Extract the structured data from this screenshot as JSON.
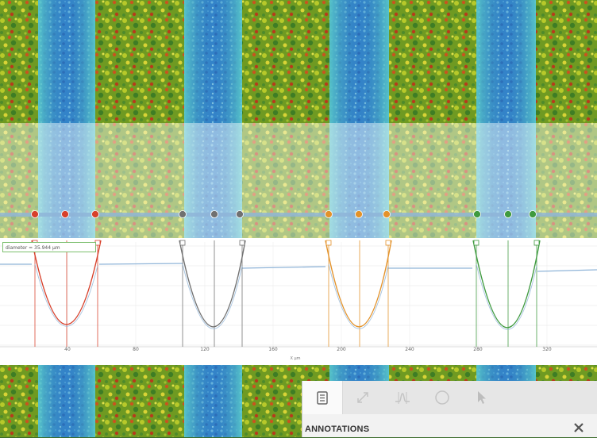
{
  "profile": {
    "diameter_label": "diameter = 35.944 µm",
    "x_unit": "X µm",
    "x_ticks": [
      "40",
      "80",
      "120",
      "160",
      "200",
      "240",
      "280",
      "320"
    ]
  },
  "panel": {
    "title": "ANNOTATIONS",
    "tools": [
      {
        "icon": "document-icon",
        "active": true
      },
      {
        "icon": "resize-arrow-icon",
        "active": false
      },
      {
        "icon": "profile-curve-icon",
        "active": false
      },
      {
        "icon": "circle-icon",
        "active": false
      },
      {
        "icon": "pointer-icon",
        "active": false
      }
    ]
  },
  "colors": {
    "red": "#d7402b",
    "gray": "#707070",
    "orange": "#e3922a",
    "green": "#3f9a3f",
    "profile": "#8fb4d8"
  }
}
